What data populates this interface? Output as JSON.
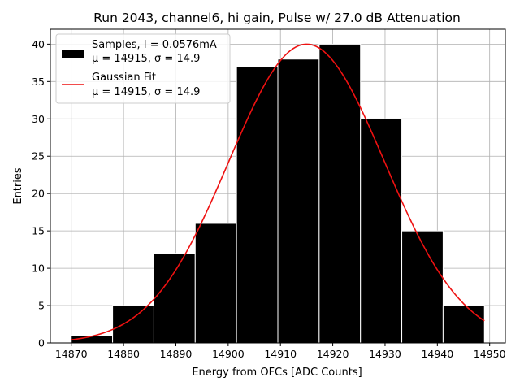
{
  "chart_data": {
    "type": "bar",
    "title": "Run 2043, channel6, hi gain, Pulse w/ 27.0 dB Attenuation",
    "xlabel": "Energy from OFCs [ADC Counts]",
    "ylabel": "Entries",
    "xlim": [
      14866,
      14953
    ],
    "ylim": [
      0,
      42
    ],
    "x_ticks": [
      14870,
      14880,
      14890,
      14900,
      14910,
      14920,
      14930,
      14940,
      14950
    ],
    "y_ticks": [
      0,
      5,
      10,
      15,
      20,
      25,
      30,
      35,
      40
    ],
    "grid": true,
    "legend_position": "top-left",
    "histogram": {
      "name_line1": "Samples, I = 0.0576mA",
      "name_line2": "μ = 14915, σ = 14.9",
      "color": "#000000",
      "bins": [
        {
          "x0": 14870.0,
          "x1": 14877.9,
          "count": 1
        },
        {
          "x0": 14877.9,
          "x1": 14885.8,
          "count": 5
        },
        {
          "x0": 14885.8,
          "x1": 14893.7,
          "count": 12
        },
        {
          "x0": 14893.7,
          "x1": 14901.6,
          "count": 16
        },
        {
          "x0": 14901.6,
          "x1": 14909.5,
          "count": 37
        },
        {
          "x0": 14909.5,
          "x1": 14917.4,
          "count": 38
        },
        {
          "x0": 14917.4,
          "x1": 14925.3,
          "count": 40
        },
        {
          "x0": 14925.3,
          "x1": 14933.2,
          "count": 30
        },
        {
          "x0": 14933.2,
          "x1": 14941.1,
          "count": 15
        },
        {
          "x0": 14941.1,
          "x1": 14949.0,
          "count": 5
        }
      ]
    },
    "fit": {
      "name_line1": "Gaussian Fit",
      "name_line2": "μ = 14915, σ = 14.9",
      "color": "#ee1111",
      "amplitude": 40.0,
      "mu": 14915,
      "sigma": 14.9,
      "x_range": [
        14870,
        14949
      ]
    }
  }
}
